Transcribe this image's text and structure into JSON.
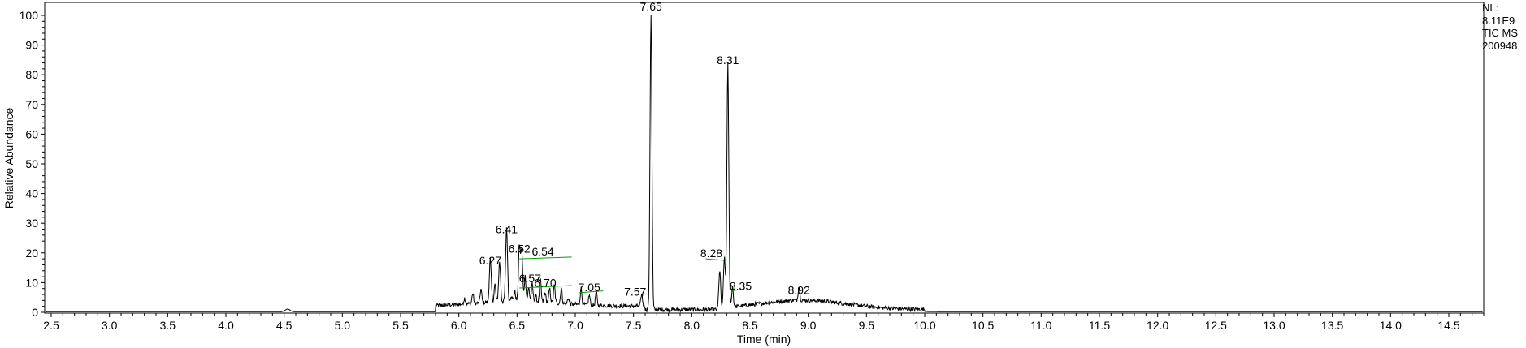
{
  "chart_data": {
    "type": "line",
    "xlabel": "Time (min)",
    "ylabel": "Relative Abundance",
    "xlim": [
      2.45,
      15.0
    ],
    "ylim": [
      0,
      101
    ],
    "xticks": [
      "2.5",
      "3.0",
      "3.5",
      "4.0",
      "4.5",
      "5.0",
      "5.5",
      "6.0",
      "6.5",
      "7.0",
      "7.5",
      "8.0",
      "8.5",
      "9.0",
      "9.5",
      "10.0",
      "10.5",
      "11.0",
      "11.5",
      "12.0",
      "12.5",
      "13.0",
      "13.5",
      "14.0",
      "14.5"
    ],
    "yticks": [
      "0",
      "10",
      "20",
      "30",
      "40",
      "50",
      "60",
      "70",
      "80",
      "90",
      "100"
    ],
    "grid": false,
    "line_color": "#000000",
    "baseline_color": "#00a000",
    "peaks": [
      {
        "x": 6.27,
        "y": 14.5,
        "label": "6.27"
      },
      {
        "x": 6.35,
        "y": 13.5,
        "label": ""
      },
      {
        "x": 6.41,
        "y": 25.0,
        "label": "6.41"
      },
      {
        "x": 6.52,
        "y": 18.5,
        "label": "6.52"
      },
      {
        "x": 6.54,
        "y": 17.0,
        "label": "6.54"
      },
      {
        "x": 6.57,
        "y": 8.5,
        "label": "6.57"
      },
      {
        "x": 6.7,
        "y": 7.5,
        "label": "6.70"
      },
      {
        "x": 6.88,
        "y": 5.0,
        "label": ""
      },
      {
        "x": 7.05,
        "y": 5.5,
        "label": "7.05"
      },
      {
        "x": 7.57,
        "y": 4.0,
        "label": "7.57"
      },
      {
        "x": 7.65,
        "y": 100.0,
        "label": "7.65"
      },
      {
        "x": 8.24,
        "y": 13.0,
        "label": ""
      },
      {
        "x": 8.28,
        "y": 17.5,
        "label": "8.28"
      },
      {
        "x": 8.31,
        "y": 82.0,
        "label": "8.31"
      },
      {
        "x": 8.35,
        "y": 7.0,
        "label": "8.35"
      },
      {
        "x": 8.92,
        "y": 4.5,
        "label": "8.92"
      }
    ],
    "baseline_segments": [
      {
        "x0": 6.52,
        "y0": 18.0,
        "x1": 6.97,
        "y1": 18.6
      },
      {
        "x0": 6.52,
        "y0": 8.2,
        "x1": 6.97,
        "y1": 9.0
      },
      {
        "x0": 7.03,
        "y0": 6.6,
        "x1": 7.24,
        "y1": 7.2
      },
      {
        "x0": 8.12,
        "y0": 18.0,
        "x1": 8.28,
        "y1": 17.5
      },
      {
        "x0": 8.35,
        "y0": 7.3,
        "x1": 8.45,
        "y1": 7.8
      }
    ]
  },
  "info": {
    "line1": "NL:",
    "line2": "8.11E9",
    "line3": "TIC  MS",
    "line4": "200948"
  }
}
